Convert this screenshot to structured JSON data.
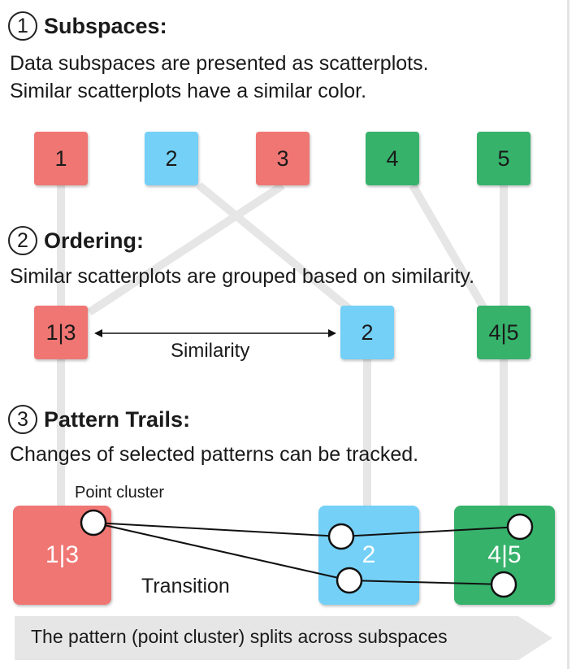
{
  "colors": {
    "red": "#f07673",
    "blue": "#74d0f7",
    "green": "#36b26b",
    "connector": "#e6e6e6"
  },
  "sections": {
    "subspaces": {
      "number": "1",
      "title": "Subspaces:",
      "desc_line1": "Data subspaces are presented as scatterplots.",
      "desc_line2": "Similar scatterplots have a similar color."
    },
    "ordering": {
      "number": "2",
      "title": "Ordering:",
      "desc": "Similar scatterplots are grouped based on similarity."
    },
    "pattern_trails": {
      "number": "3",
      "title": "Pattern Trails:",
      "desc": "Changes of selected patterns can be tracked."
    }
  },
  "row1": [
    "1",
    "2",
    "3",
    "4",
    "5"
  ],
  "row2": [
    "1|3",
    "2",
    "4|5"
  ],
  "row3": [
    "1|3",
    "2",
    "4|5"
  ],
  "labels": {
    "similarity": "Similarity",
    "point_cluster": "Point cluster",
    "transition": "Transition"
  },
  "footer": "The pattern (point cluster) splits across subspaces"
}
